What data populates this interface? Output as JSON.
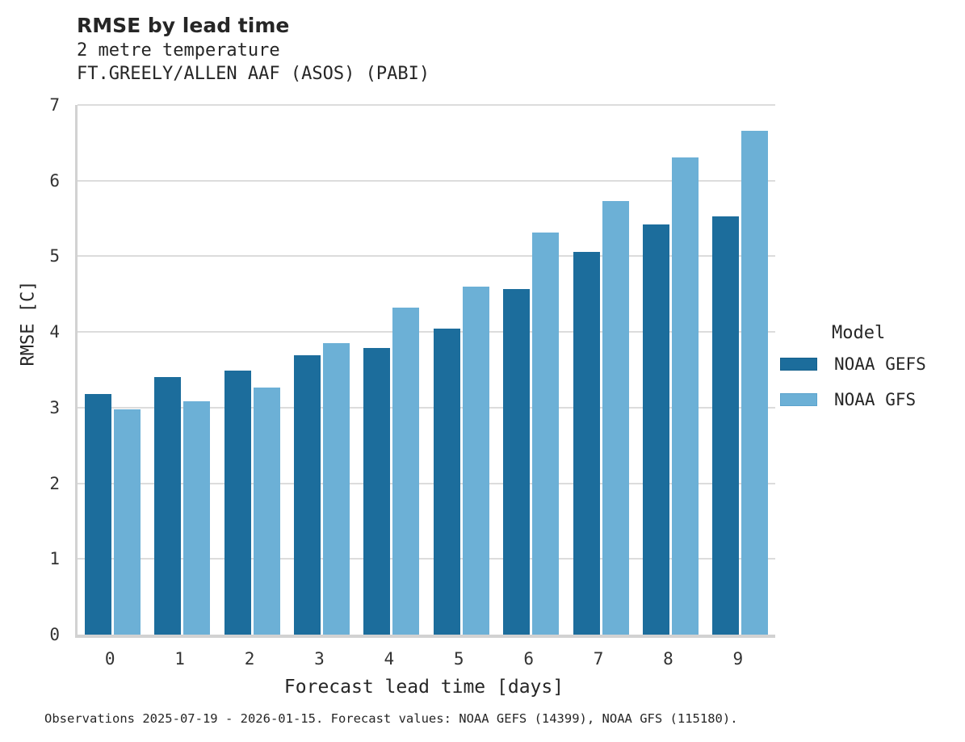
{
  "chart_data": {
    "type": "bar",
    "title": "RMSE by lead time",
    "subtitle": "2 metre temperature",
    "subtitle2": "FT.GREELY/ALLEN AAF (ASOS) (PABI)",
    "xlabel": "Forecast lead time [days]",
    "ylabel": "RMSE [C]",
    "categories": [
      "0",
      "1",
      "2",
      "3",
      "4",
      "5",
      "6",
      "7",
      "8",
      "9"
    ],
    "series": [
      {
        "name": "NOAA GEFS",
        "color": "#1c6d9c",
        "border_color": "#15608c",
        "values": [
          3.18,
          3.4,
          3.49,
          3.69,
          3.79,
          4.04,
          4.57,
          5.06,
          5.42,
          5.53
        ]
      },
      {
        "name": "NOAA GFS",
        "color": "#6cb0d6",
        "border_color": "#5ba3cd",
        "values": [
          2.98,
          3.08,
          3.27,
          3.85,
          4.32,
          4.6,
          5.31,
          5.73,
          6.31,
          6.66
        ]
      }
    ],
    "ylim": [
      0,
      7
    ],
    "yticks": [
      0,
      1,
      2,
      3,
      4,
      5,
      6,
      7
    ],
    "grid": true,
    "grid_color": "#dcdcdc",
    "axis_color": "#d2d2d2",
    "legend_title": "Model",
    "legend_position": "right"
  },
  "footer": "Observations 2025-07-19 - 2026-01-15. Forecast values: NOAA GEFS (14399), NOAA GFS (115180)."
}
